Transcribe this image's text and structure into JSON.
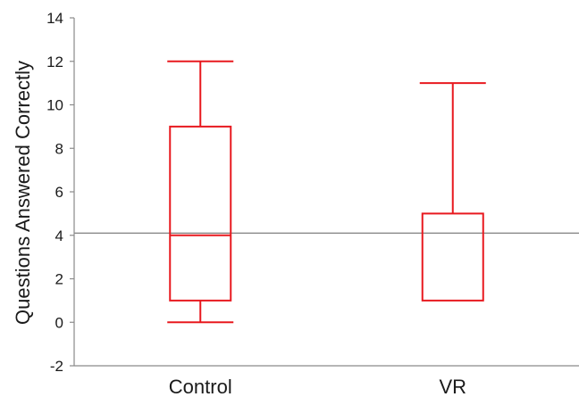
{
  "chart_data": {
    "type": "box",
    "title": "",
    "xlabel": "",
    "ylabel": "Questions Answered Correctly",
    "ylim": [
      -2,
      14
    ],
    "yticks": [
      -2,
      0,
      2,
      4,
      6,
      8,
      10,
      12,
      14
    ],
    "categories": [
      "Control",
      "VR"
    ],
    "boxes": [
      {
        "category": "Control",
        "min": 0,
        "q1": 1,
        "median": 4,
        "q3": 9,
        "max": 12
      },
      {
        "category": "VR",
        "min": 1,
        "q1": 1,
        "median": 1,
        "q3": 5,
        "max": 11
      }
    ],
    "reference_line": 4.1,
    "box_color": "#e8191f",
    "axis_color": "#8a8a8a",
    "grid": false,
    "legend": "none"
  }
}
